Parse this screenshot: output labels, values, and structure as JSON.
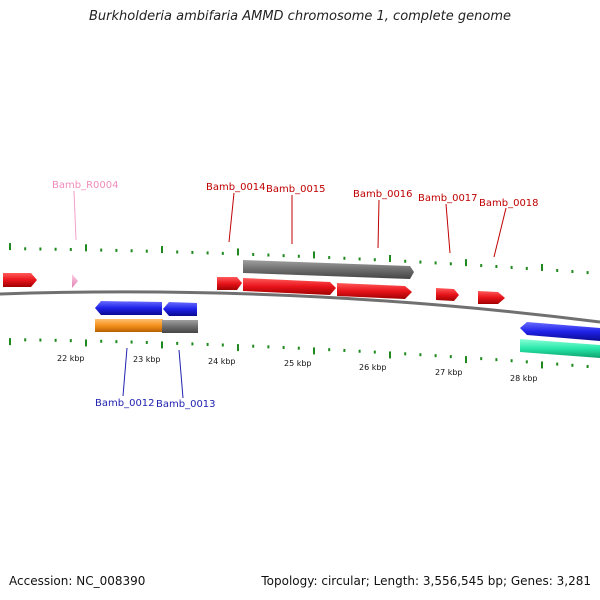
{
  "title": "Burkholderia ambifaria AMMD chromosome 1, complete genome",
  "footer": {
    "accession": "Accession: NC_008390",
    "summary": "Topology: circular; Length: 3,556,545 bp; Genes: 3,281"
  },
  "colors": {
    "forward_gene": "#e8141b",
    "reverse_gene": "#1f22e8",
    "rna_gene": "#f4a0c8",
    "pseudo_gray": "#707070",
    "orange_feature": "#f5921e",
    "teal_feature": "#27e8a8",
    "tick_green": "#1e8a1e",
    "backbone": "#808080"
  },
  "scale": {
    "unit": "kbp",
    "labels": [
      "22 kbp",
      "23 kbp",
      "24 kbp",
      "25 kbp",
      "26 kbp",
      "27 kbp",
      "28 kbp"
    ]
  },
  "genes_top": [
    {
      "id": "Bamb_R0004",
      "strand": "+",
      "type": "rna"
    },
    {
      "id": "Bamb_0014",
      "strand": "+",
      "type": "gene"
    },
    {
      "id": "Bamb_0015",
      "strand": "+",
      "type": "gene"
    },
    {
      "id": "Bamb_0016",
      "strand": "+",
      "type": "gene"
    },
    {
      "id": "Bamb_0017",
      "strand": "+",
      "type": "gene"
    },
    {
      "id": "Bamb_0018",
      "strand": "+",
      "type": "gene"
    }
  ],
  "genes_bottom": [
    {
      "id": "Bamb_0012",
      "strand": "-",
      "type": "gene"
    },
    {
      "id": "Bamb_0013",
      "strand": "-",
      "type": "gene"
    }
  ]
}
